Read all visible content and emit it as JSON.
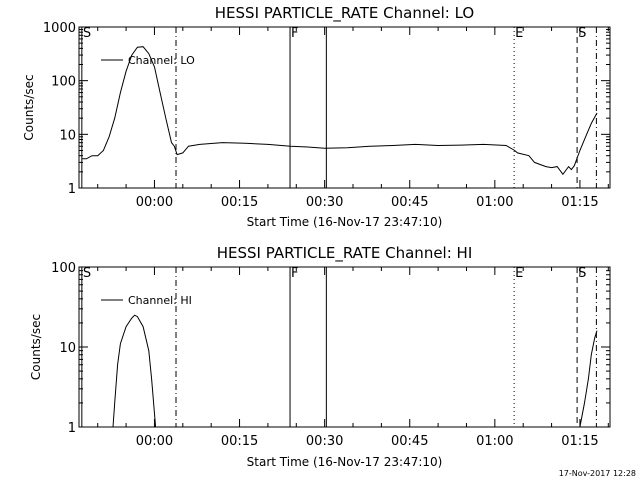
{
  "footer": {
    "timestamp": "17-Nov-2017 12:28"
  },
  "chart_data": [
    {
      "type": "line",
      "title": "HESSI PARTICLE_RATE Channel: LO",
      "xlabel": "Start Time (16-Nov-17 23:47:10)",
      "ylabel": "Counts/sec",
      "y_scale": "log",
      "ylim": [
        1,
        1000
      ],
      "y_ticks": [
        1,
        10,
        100,
        1000
      ],
      "y_tick_labels": [
        "1",
        "10",
        "100",
        "1000"
      ],
      "x_units": "minutes since 00:00",
      "xlim": [
        -13.3,
        80.3
      ],
      "x_ticks": [
        0,
        15,
        30,
        45,
        60,
        75
      ],
      "x_tick_labels": [
        "00:00",
        "00:15",
        "00:30",
        "00:45",
        "01:00",
        "01:15"
      ],
      "legend": {
        "position": "top-left",
        "entries": [
          "Channel: LO"
        ]
      },
      "markers": [
        {
          "label": "S",
          "x": -12.8,
          "style": "solid"
        },
        {
          "label": "",
          "x": 3.8,
          "style": "dashdot"
        },
        {
          "label": "F",
          "x": 23.9,
          "style": "solid"
        },
        {
          "label": "",
          "x": 30.3,
          "style": "solid"
        },
        {
          "label": "E",
          "x": 63.4,
          "style": "dotted"
        },
        {
          "label": "S",
          "x": 74.5,
          "style": "dashed"
        },
        {
          "label": "",
          "x": 77.9,
          "style": "dashdot"
        }
      ],
      "series": [
        {
          "name": "Channel: LO",
          "points": [
            [
              -12.8,
              3.5
            ],
            [
              -12,
              3.5
            ],
            [
              -11,
              4
            ],
            [
              -10,
              4
            ],
            [
              -9,
              5
            ],
            [
              -8,
              9
            ],
            [
              -7,
              20
            ],
            [
              -6,
              60
            ],
            [
              -5,
              150
            ],
            [
              -4,
              300
            ],
            [
              -3,
              420
            ],
            [
              -2,
              430
            ],
            [
              -1,
              320
            ],
            [
              0,
              180
            ],
            [
              1,
              60
            ],
            [
              2,
              20
            ],
            [
              3,
              7
            ],
            [
              3.5,
              6
            ],
            [
              4,
              4.2
            ],
            [
              5,
              4.5
            ],
            [
              6,
              6
            ],
            [
              8,
              6.5
            ],
            [
              12,
              7
            ],
            [
              16,
              6.8
            ],
            [
              20,
              6.5
            ],
            [
              24,
              6
            ],
            [
              27,
              5.8
            ],
            [
              30,
              5.5
            ],
            [
              34,
              5.6
            ],
            [
              38,
              6
            ],
            [
              42,
              6.2
            ],
            [
              46,
              6.5
            ],
            [
              50,
              6.2
            ],
            [
              54,
              6.3
            ],
            [
              58,
              6.5
            ],
            [
              62,
              6.2
            ],
            [
              63.5,
              5
            ],
            [
              64,
              4.5
            ],
            [
              66,
              4
            ],
            [
              67,
              3
            ],
            [
              69,
              2.5
            ],
            [
              70,
              2.4
            ],
            [
              71,
              2.5
            ],
            [
              72,
              1.8
            ],
            [
              73,
              2.5
            ],
            [
              73.5,
              2.2
            ],
            [
              74,
              2.6
            ],
            [
              75,
              5
            ],
            [
              76,
              9
            ],
            [
              77,
              16
            ],
            [
              78,
              25
            ]
          ]
        }
      ]
    },
    {
      "type": "line",
      "title": "HESSI PARTICLE_RATE Channel: HI",
      "xlabel": "Start Time (16-Nov-17 23:47:10)",
      "ylabel": "Counts/sec",
      "y_scale": "log",
      "ylim": [
        1,
        100
      ],
      "y_ticks": [
        1,
        10,
        100
      ],
      "y_tick_labels": [
        "1",
        "10",
        "100"
      ],
      "x_units": "minutes since 00:00",
      "xlim": [
        -13.3,
        80.3
      ],
      "x_ticks": [
        0,
        15,
        30,
        45,
        60,
        75
      ],
      "x_tick_labels": [
        "00:00",
        "00:15",
        "00:30",
        "00:45",
        "01:00",
        "01:15"
      ],
      "legend": {
        "position": "top-left",
        "entries": [
          "Channel: HI"
        ]
      },
      "markers": [
        {
          "label": "S",
          "x": -12.8,
          "style": "solid"
        },
        {
          "label": "",
          "x": 3.8,
          "style": "dashdot"
        },
        {
          "label": "F",
          "x": 23.9,
          "style": "solid"
        },
        {
          "label": "",
          "x": 30.3,
          "style": "solid"
        },
        {
          "label": "E",
          "x": 63.4,
          "style": "dotted"
        },
        {
          "label": "S",
          "x": 74.5,
          "style": "dashed"
        },
        {
          "label": "",
          "x": 77.9,
          "style": "dashdot"
        }
      ],
      "series": [
        {
          "name": "Channel: HI",
          "segments": [
            [
              [
                -7.3,
                1
              ],
              [
                -7,
                2
              ],
              [
                -6.5,
                6
              ],
              [
                -6,
                11
              ],
              [
                -5,
                18
              ],
              [
                -4,
                23
              ],
              [
                -3.5,
                25
              ],
              [
                -3,
                24
              ],
              [
                -2,
                18
              ],
              [
                -1,
                9
              ],
              [
                -0.5,
                4
              ],
              [
                0.2,
                1
              ]
            ],
            [
              [
                75,
                1
              ],
              [
                75.8,
                2
              ],
              [
                76.5,
                4
              ],
              [
                77,
                8
              ],
              [
                77.6,
                13
              ],
              [
                78,
                16
              ]
            ]
          ]
        }
      ]
    }
  ]
}
